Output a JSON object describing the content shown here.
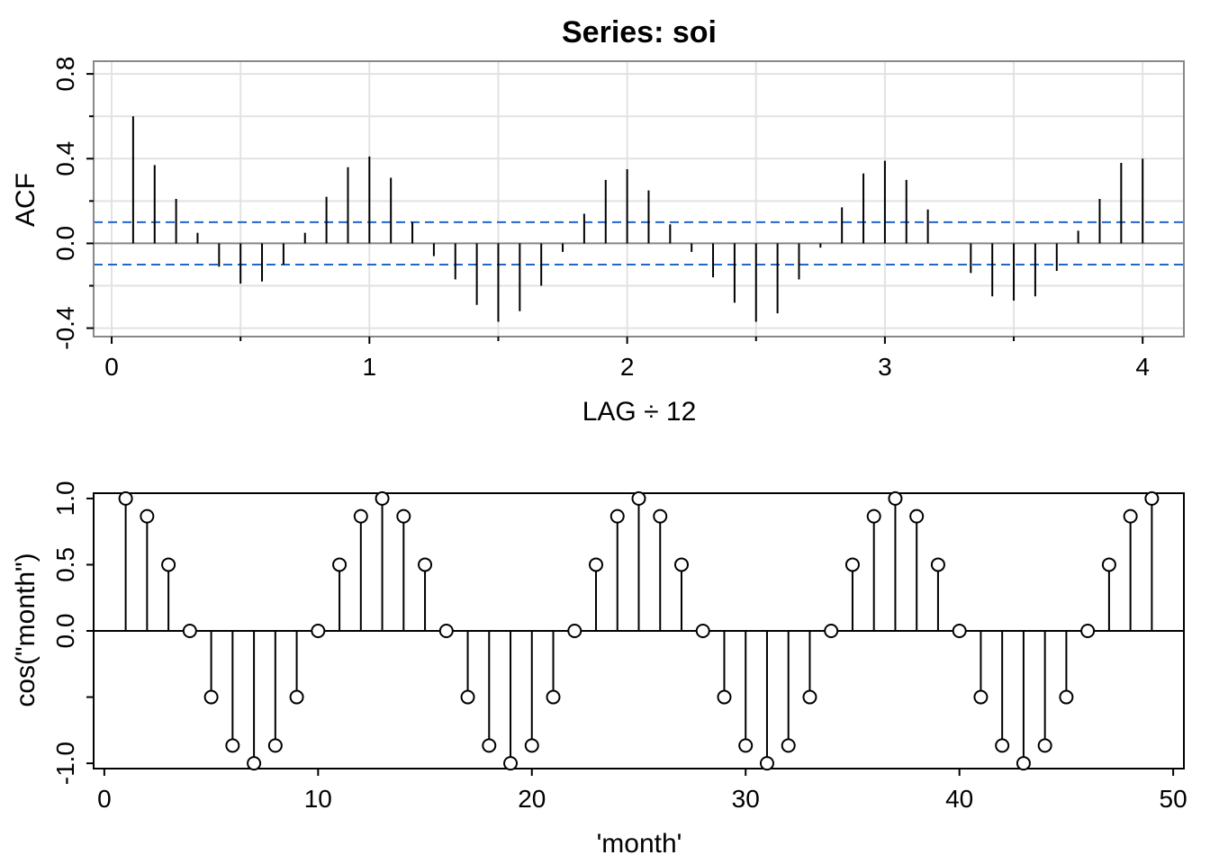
{
  "chart_data": [
    {
      "type": "stem",
      "title": "Series:  soi",
      "xlabel": "LAG ÷ 12",
      "ylabel": "ACF",
      "xlim": [
        -0.07,
        4.16
      ],
      "ylim": [
        -0.44,
        0.86
      ],
      "xticks": [
        0,
        1,
        2,
        3,
        4
      ],
      "xtick_labels": [
        "0",
        "1",
        "2",
        "3",
        "4"
      ],
      "yticks": [
        -0.4,
        0.0,
        0.4,
        0.8
      ],
      "ytick_labels": [
        "-0.4",
        "0.0",
        "0.4",
        "0.8"
      ],
      "y_minor_ticks": [
        -0.2,
        0.2,
        0.6
      ],
      "x_minor_ticks": [
        0.5,
        1.5,
        2.5,
        3.5
      ],
      "grid": true,
      "confidence_bounds": [
        0.1,
        -0.1
      ],
      "confidence_color": "#2166cc",
      "lags": [
        0.0833,
        0.1667,
        0.25,
        0.3333,
        0.4167,
        0.5,
        0.5833,
        0.6667,
        0.75,
        0.8333,
        0.9167,
        1.0,
        1.0833,
        1.1667,
        1.25,
        1.3333,
        1.4167,
        1.5,
        1.5833,
        1.6667,
        1.75,
        1.8333,
        1.9167,
        2.0,
        2.0833,
        2.1667,
        2.25,
        2.3333,
        2.4167,
        2.5,
        2.5833,
        2.6667,
        2.75,
        2.8333,
        2.9167,
        3.0,
        3.0833,
        3.1667,
        3.25,
        3.3333,
        3.4167,
        3.5,
        3.5833,
        3.6667,
        3.75,
        3.8333,
        3.9167,
        4.0
      ],
      "acf": [
        0.6,
        0.37,
        0.21,
        0.05,
        -0.11,
        -0.19,
        -0.18,
        -0.1,
        0.05,
        0.22,
        0.36,
        0.41,
        0.31,
        0.1,
        -0.06,
        -0.17,
        -0.29,
        -0.37,
        -0.32,
        -0.2,
        -0.04,
        0.14,
        0.3,
        0.35,
        0.25,
        0.09,
        -0.04,
        -0.16,
        -0.28,
        -0.37,
        -0.33,
        -0.17,
        -0.02,
        0.17,
        0.33,
        0.39,
        0.3,
        0.16,
        0.0,
        -0.14,
        -0.25,
        -0.27,
        -0.25,
        -0.13,
        0.06,
        0.21,
        0.38,
        0.4
      ]
    },
    {
      "type": "stem",
      "xlabel": "'month'",
      "ylabel": "cos(\"month\")",
      "xlim": [
        -0.5,
        50.5
      ],
      "ylim": [
        -1.04,
        1.04
      ],
      "xticks": [
        0,
        10,
        20,
        30,
        40,
        50
      ],
      "xtick_labels": [
        "0",
        "10",
        "20",
        "30",
        "40",
        "50"
      ],
      "yticks": [
        -1.0,
        -0.5,
        0.0,
        0.5,
        1.0
      ],
      "ytick_labels": [
        "-1.0",
        "",
        "0.0",
        "0.5",
        "1.0"
      ],
      "x": [
        1,
        2,
        3,
        4,
        5,
        6,
        7,
        8,
        9,
        10,
        11,
        12,
        13,
        14,
        15,
        16,
        17,
        18,
        19,
        20,
        21,
        22,
        23,
        24,
        25,
        26,
        27,
        28,
        29,
        30,
        31,
        32,
        33,
        34,
        35,
        36,
        37,
        38,
        39,
        40,
        41,
        42,
        43,
        44,
        45,
        46,
        47,
        48,
        49
      ],
      "values": [
        1.0,
        0.866,
        0.5,
        0.0,
        -0.5,
        -0.866,
        -1.0,
        -0.866,
        -0.5,
        0.0,
        0.5,
        0.866,
        1.0,
        0.866,
        0.5,
        0.0,
        -0.5,
        -0.866,
        -1.0,
        -0.866,
        -0.5,
        0.0,
        0.5,
        0.866,
        1.0,
        0.866,
        0.5,
        0.0,
        -0.5,
        -0.866,
        -1.0,
        -0.866,
        -0.5,
        0.0,
        0.5,
        0.866,
        1.0,
        0.866,
        0.5,
        0.0,
        -0.5,
        -0.866,
        -1.0,
        -0.866,
        -0.5,
        0.0,
        0.5,
        0.866,
        1.0
      ]
    }
  ]
}
